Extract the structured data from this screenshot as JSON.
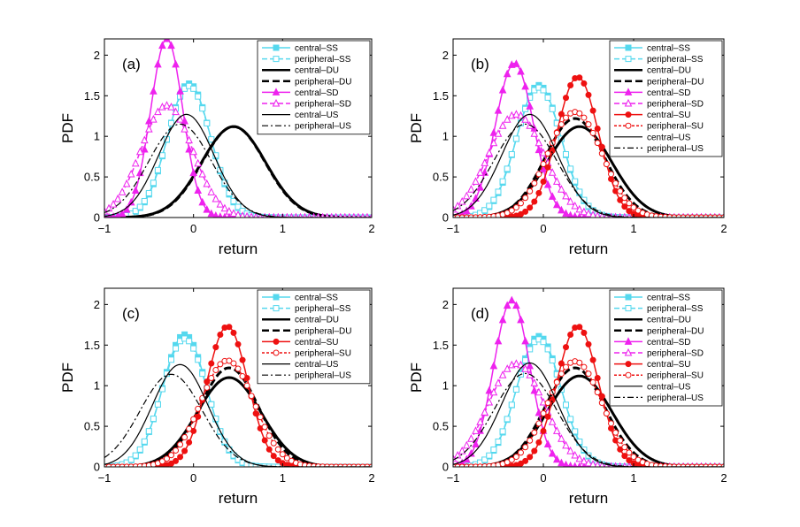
{
  "chart_data": [
    {
      "type": "line",
      "panel_label": "(a)",
      "xlabel": "return",
      "ylabel": "PDF",
      "xlim": [
        -1,
        2
      ],
      "ylim": [
        0,
        2.2
      ],
      "xticks": [
        "−1",
        "0",
        "1",
        "2"
      ],
      "yticks": [
        "0",
        "0.5",
        "1",
        "1.5",
        "2"
      ],
      "legend_position": "top-right",
      "series": [
        {
          "name": "central–SS",
          "peak": -0.05,
          "height": 1.65,
          "sd": 0.24
        },
        {
          "name": "peripheral–SS",
          "peak": -0.05,
          "height": 1.62,
          "sd": 0.245
        },
        {
          "name": "central–DU",
          "peak": 0.45,
          "height": 1.12,
          "sd": 0.36
        },
        {
          "name": "peripheral–DU",
          "peak": 0.45,
          "height": 1.12,
          "sd": 0.355
        },
        {
          "name": "central–SD",
          "peak": -0.3,
          "height": 2.2,
          "sd": 0.18
        },
        {
          "name": "peripheral–SD",
          "peak": -0.3,
          "height": 1.38,
          "sd": 0.29
        },
        {
          "name": "central–US",
          "peak": -0.08,
          "height": 1.27,
          "sd": 0.31
        },
        {
          "name": "peripheral–US",
          "peak": -0.15,
          "height": 1.15,
          "sd": 0.35
        }
      ]
    },
    {
      "type": "line",
      "panel_label": "(b)",
      "xlabel": "return",
      "ylabel": "PDF",
      "xlim": [
        -1,
        2
      ],
      "ylim": [
        0,
        2.2
      ],
      "xticks": [
        "−1",
        "0",
        "1",
        "2"
      ],
      "yticks": [
        "0",
        "0.5",
        "1",
        "1.5",
        "2"
      ],
      "legend_position": "top-right",
      "series": [
        {
          "name": "central–SS",
          "peak": -0.05,
          "height": 1.63,
          "sd": 0.245
        },
        {
          "name": "peripheral–SS",
          "peak": -0.05,
          "height": 1.6,
          "sd": 0.25
        },
        {
          "name": "central–DU",
          "peak": 0.4,
          "height": 1.12,
          "sd": 0.36
        },
        {
          "name": "peripheral–DU",
          "peak": 0.35,
          "height": 1.22,
          "sd": 0.33
        },
        {
          "name": "central–SD",
          "peak": -0.32,
          "height": 1.9,
          "sd": 0.21
        },
        {
          "name": "peripheral–SD",
          "peak": -0.3,
          "height": 1.27,
          "sd": 0.31
        },
        {
          "name": "central–SU",
          "peak": 0.38,
          "height": 1.73,
          "sd": 0.23
        },
        {
          "name": "peripheral–SU",
          "peak": 0.35,
          "height": 1.3,
          "sd": 0.3
        },
        {
          "name": "central–US",
          "peak": -0.15,
          "height": 1.27,
          "sd": 0.31
        },
        {
          "name": "peripheral–US",
          "peak": -0.2,
          "height": 1.15,
          "sd": 0.35
        }
      ]
    },
    {
      "type": "line",
      "panel_label": "(c)",
      "xlabel": "return",
      "ylabel": "PDF",
      "xlim": [
        -1,
        2
      ],
      "ylim": [
        0,
        2.2
      ],
      "xticks": [
        "−1",
        "0",
        "1",
        "2"
      ],
      "yticks": [
        "0",
        "0.5",
        "1",
        "1.5",
        "2"
      ],
      "legend_position": "top-right",
      "series": [
        {
          "name": "central–SS",
          "peak": -0.1,
          "height": 1.63,
          "sd": 0.245
        },
        {
          "name": "peripheral–SS",
          "peak": -0.1,
          "height": 1.58,
          "sd": 0.25
        },
        {
          "name": "central–DU",
          "peak": 0.4,
          "height": 1.1,
          "sd": 0.36
        },
        {
          "name": "peripheral–DU",
          "peak": 0.4,
          "height": 1.22,
          "sd": 0.33
        },
        {
          "name": "central–SU",
          "peak": 0.38,
          "height": 1.73,
          "sd": 0.23
        },
        {
          "name": "peripheral–SU",
          "peak": 0.38,
          "height": 1.31,
          "sd": 0.3
        },
        {
          "name": "central–US",
          "peak": -0.15,
          "height": 1.26,
          "sd": 0.31
        },
        {
          "name": "peripheral–US",
          "peak": -0.25,
          "height": 1.14,
          "sd": 0.35
        }
      ]
    },
    {
      "type": "line",
      "panel_label": "(d)",
      "xlabel": "return",
      "ylabel": "PDF",
      "xlim": [
        -1,
        2
      ],
      "ylim": [
        0,
        2.2
      ],
      "xticks": [
        "−1",
        "0",
        "1",
        "2"
      ],
      "yticks": [
        "0",
        "0.5",
        "1",
        "1.5",
        "2"
      ],
      "legend_position": "top-right",
      "series": [
        {
          "name": "central–SS",
          "peak": -0.05,
          "height": 1.61,
          "sd": 0.245
        },
        {
          "name": "peripheral–SS",
          "peak": -0.05,
          "height": 1.57,
          "sd": 0.25
        },
        {
          "name": "central–DU",
          "peak": 0.4,
          "height": 1.12,
          "sd": 0.36
        },
        {
          "name": "peripheral–DU",
          "peak": 0.35,
          "height": 1.22,
          "sd": 0.33
        },
        {
          "name": "central–SD",
          "peak": -0.35,
          "height": 2.05,
          "sd": 0.2
        },
        {
          "name": "peripheral–SD",
          "peak": -0.3,
          "height": 1.27,
          "sd": 0.31
        },
        {
          "name": "central–SU",
          "peak": 0.38,
          "height": 1.73,
          "sd": 0.23
        },
        {
          "name": "peripheral–SU",
          "peak": 0.35,
          "height": 1.3,
          "sd": 0.3
        },
        {
          "name": "central–US",
          "peak": -0.15,
          "height": 1.28,
          "sd": 0.31
        },
        {
          "name": "peripheral–US",
          "peak": -0.2,
          "height": 1.15,
          "sd": 0.35
        }
      ]
    }
  ],
  "styles": {
    "central–SS": {
      "color": "#55d8ee",
      "dash": "",
      "marker": "square-filled",
      "width": 1.5
    },
    "peripheral–SS": {
      "color": "#55d8ee",
      "dash": "6,3",
      "marker": "square-open",
      "width": 1.5
    },
    "central–DU": {
      "color": "#000000",
      "dash": "",
      "marker": "none",
      "width": 3
    },
    "peripheral–DU": {
      "color": "#000000",
      "dash": "8,4",
      "marker": "none",
      "width": 3
    },
    "central–SD": {
      "color": "#ee22ee",
      "dash": "",
      "marker": "triangle-filled",
      "width": 1.5
    },
    "peripheral–SD": {
      "color": "#ee22ee",
      "dash": "6,3",
      "marker": "triangle-open",
      "width": 1.5
    },
    "central–SU": {
      "color": "#ee1111",
      "dash": "",
      "marker": "circle-filled",
      "width": 1.5
    },
    "peripheral–SU": {
      "color": "#ee1111",
      "dash": "3,2",
      "marker": "circle-open",
      "width": 1.5
    },
    "central–US": {
      "color": "#000000",
      "dash": "",
      "marker": "none",
      "width": 1.2
    },
    "peripheral–US": {
      "color": "#000000",
      "dash": "7,3,2,3",
      "marker": "none",
      "width": 1.2
    }
  }
}
